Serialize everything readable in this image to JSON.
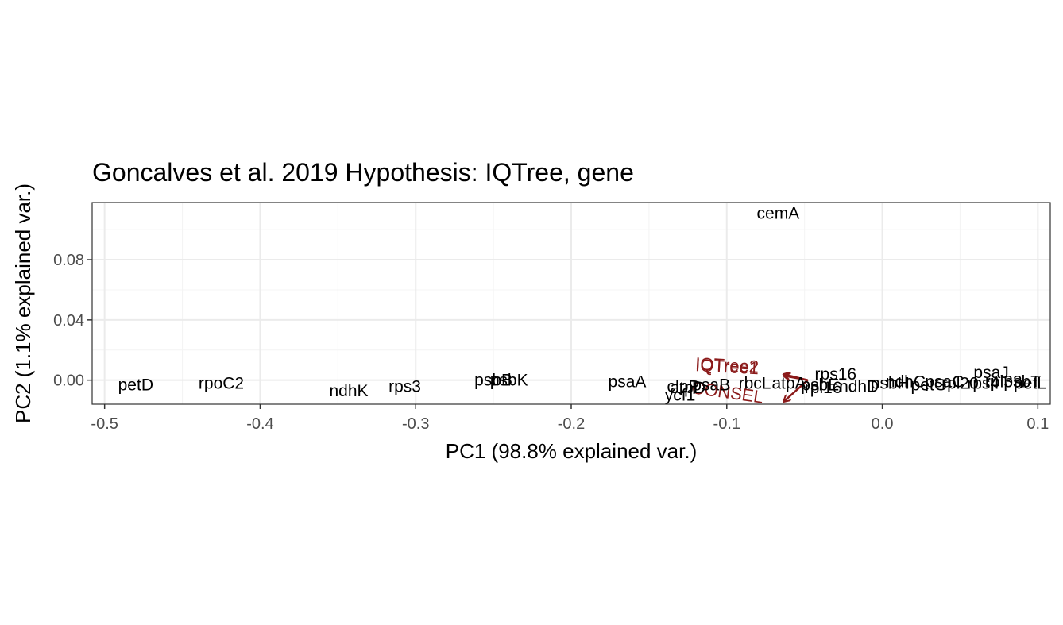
{
  "chart_data": {
    "type": "scatter",
    "title": "Goncalves et al. 2019 Hypothesis: IQTree,  gene",
    "xlabel": "PC1 (98.8% explained var.)",
    "ylabel": "PC2 (1.1% explained var.)",
    "xlim": [
      -0.508,
      0.108
    ],
    "ylim": [
      -0.016,
      0.118
    ],
    "x_ticks": [
      -0.5,
      -0.4,
      -0.3,
      -0.2,
      -0.1,
      0.0,
      0.1
    ],
    "x_tick_labels": [
      "-0.5",
      "-0.4",
      "-0.3",
      "-0.2",
      "-0.1",
      "0.0",
      "0.1"
    ],
    "y_ticks": [
      0.0,
      0.04,
      0.08
    ],
    "y_tick_labels": [
      "0.00",
      "0.04",
      "0.08"
    ],
    "grid": true,
    "colors": {
      "label": "#000000",
      "arrow": "#8b1a1a",
      "grid": "#ebebeb",
      "panel_border": "#333333",
      "tick_text": "#4d4d4d"
    },
    "points": [
      {
        "label": "cemA",
        "x": -0.067,
        "y": 0.111
      },
      {
        "label": "petD",
        "x": -0.48,
        "y": -0.003
      },
      {
        "label": "rpoC2",
        "x": -0.425,
        "y": -0.002
      },
      {
        "label": "ndhK",
        "x": -0.343,
        "y": -0.007
      },
      {
        "label": "rps3",
        "x": -0.307,
        "y": -0.004
      },
      {
        "label": "psbB",
        "x": -0.25,
        "y": 0.0
      },
      {
        "label": "psbK",
        "x": -0.24,
        "y": 0.0
      },
      {
        "label": "psaA",
        "x": -0.164,
        "y": -0.001
      },
      {
        "label": "clpP",
        "x": -0.128,
        "y": -0.004
      },
      {
        "label": "atpD",
        "x": -0.125,
        "y": -0.005
      },
      {
        "label": "psaB",
        "x": -0.11,
        "y": -0.003
      },
      {
        "label": "ycf1",
        "x": -0.13,
        "y": -0.01
      },
      {
        "label": "rbcL",
        "x": -0.082,
        "y": -0.002
      },
      {
        "label": "rps16",
        "x": -0.03,
        "y": 0.004
      },
      {
        "label": "atpA",
        "x": -0.06,
        "y": -0.002
      },
      {
        "label": "psbE",
        "x": -0.04,
        "y": -0.003
      },
      {
        "label": "ndhD",
        "x": -0.015,
        "y": -0.004
      },
      {
        "label": "rpl16",
        "x": -0.038,
        "y": -0.005
      },
      {
        "label": "ndhC",
        "x": 0.015,
        "y": -0.001
      },
      {
        "label": "psbH",
        "x": 0.005,
        "y": -0.002
      },
      {
        "label": "rpl20",
        "x": 0.05,
        "y": -0.002
      },
      {
        "label": "psaC",
        "x": 0.04,
        "y": -0.001
      },
      {
        "label": "petG",
        "x": 0.03,
        "y": -0.003
      },
      {
        "label": "rps4",
        "x": 0.065,
        "y": -0.002
      },
      {
        "label": "rpl33",
        "x": 0.078,
        "y": -0.001
      },
      {
        "label": "psaJ",
        "x": 0.07,
        "y": 0.005
      },
      {
        "label": "psbT",
        "x": 0.09,
        "y": -0.001
      },
      {
        "label": "petL",
        "x": 0.095,
        "y": -0.002
      }
    ],
    "arrows": [
      {
        "label": "IQTree1",
        "x": -0.1,
        "y": 0.005
      },
      {
        "label": "IQTree2",
        "x": -0.1,
        "y": 0.006
      },
      {
        "label": "CONSEL",
        "x": -0.1,
        "y": -0.012
      }
    ]
  }
}
